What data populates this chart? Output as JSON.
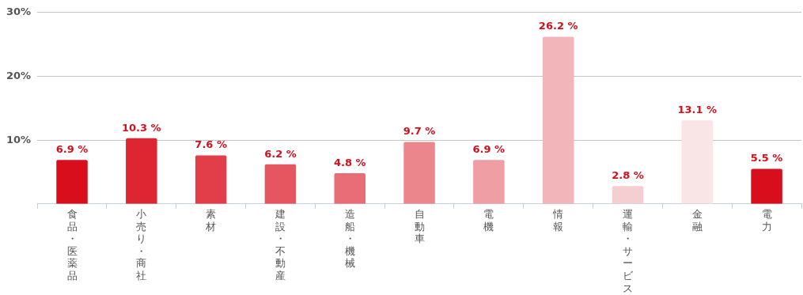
{
  "chart_data": {
    "type": "bar",
    "categories": [
      "食品・医薬品",
      "小売り・商社",
      "素材",
      "建設・不動産",
      "造船・機械",
      "自動車",
      "電機",
      "情報",
      "運輸・サービス",
      "金融",
      "電力"
    ],
    "values": [
      6.9,
      10.3,
      7.6,
      6.2,
      4.8,
      9.7,
      6.9,
      26.2,
      2.8,
      13.1,
      5.5
    ],
    "colors": [
      "#d90e1c",
      "#de2633",
      "#e23e4a",
      "#e55660",
      "#e96d76",
      "#ec868d",
      "#ef9ea3",
      "#f2b6ba",
      "#f5ced1",
      "#f9e4e6",
      "#d90e1c"
    ],
    "value_labels": [
      "6.9 %",
      "10.3 %",
      "7.6 %",
      "6.2 %",
      "4.8 %",
      "9.7 %",
      "6.9 %",
      "26.2 %",
      "2.8 %",
      "13.1 %",
      "5.5 %"
    ],
    "ylim": [
      0,
      30
    ],
    "yticks": [
      {
        "value": 10,
        "label": "10%"
      },
      {
        "value": 20,
        "label": "20%"
      },
      {
        "value": 30,
        "label": "30%"
      }
    ],
    "grid": "y",
    "legend": false
  }
}
